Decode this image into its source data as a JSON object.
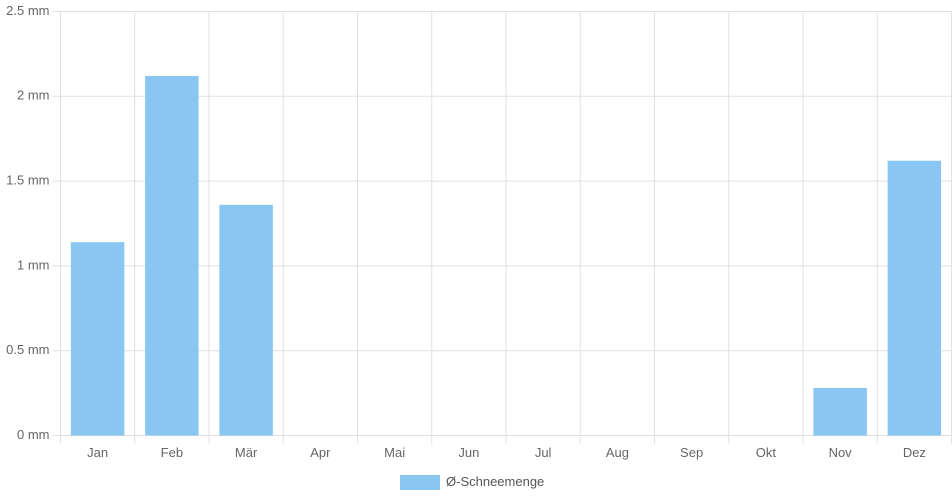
{
  "chart_data": {
    "type": "bar",
    "categories": [
      "Jan",
      "Feb",
      "Mär",
      "Apr",
      "Mai",
      "Jun",
      "Jul",
      "Aug",
      "Sep",
      "Okt",
      "Nov",
      "Dez"
    ],
    "series": [
      {
        "name": "Ø-Schneemenge",
        "color": "#89c7f2",
        "values": [
          1.14,
          2.12,
          1.36,
          0,
          0,
          0,
          0,
          0,
          0,
          0,
          0.28,
          1.62
        ]
      }
    ],
    "ylim": [
      0,
      2.5
    ],
    "yticks": [
      {
        "value": 0,
        "label": "0 mm"
      },
      {
        "value": 0.5,
        "label": "0.5 mm"
      },
      {
        "value": 1,
        "label": "1 mm"
      },
      {
        "value": 1.5,
        "label": "1.5 mm"
      },
      {
        "value": 2,
        "label": "2 mm"
      },
      {
        "value": 2.5,
        "label": "2.5 mm"
      }
    ],
    "grid": true,
    "legend": "bottom"
  }
}
